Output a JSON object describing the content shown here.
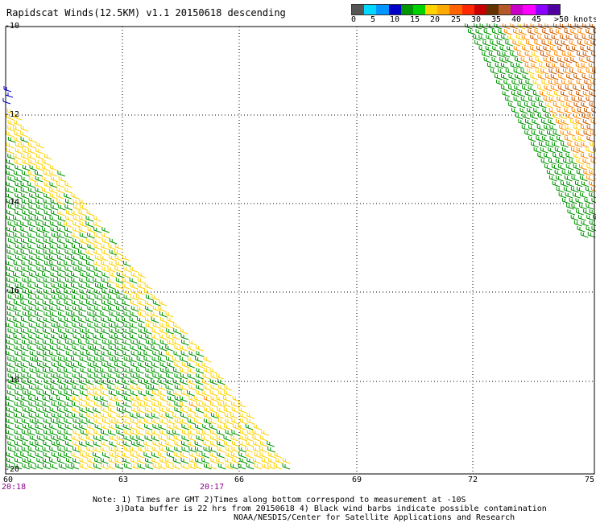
{
  "title": "Rapidscat Winds(12.5KM) v1.1 20150618 descending",
  "scale": {
    "colors": [
      "#555555",
      "#00d8ff",
      "#0096ff",
      "#0000c8",
      "#009600",
      "#00d200",
      "#ffd200",
      "#ffaa00",
      "#ff6400",
      "#ff2800",
      "#c80000",
      "#643200",
      "#b45a28",
      "#c800c8",
      "#ff00ff",
      "#8c00ff",
      "#5000a0"
    ],
    "labels": [
      "0",
      "5",
      "10",
      "15",
      "20",
      "25",
      "30",
      "35",
      "40",
      "45",
      ">50 knots"
    ]
  },
  "lat_labels": [
    "-10",
    "-12",
    "-14",
    "-16",
    "-18",
    "-20"
  ],
  "lon_labels": [
    "60",
    "63",
    "66",
    "69",
    "72",
    "75"
  ],
  "time_labels": [
    "20:18",
    "20:17"
  ],
  "notes": [
    "Note: 1) Times are GMT 2)Times along bottom correspond to measurement at -10S",
    "3)Data buffer is 22 hrs from 20150618 4) Black wind barbs indicate possible contamination",
    "NOAA/NESDIS/Center for Satellite Applications and Research"
  ],
  "barb_colors": {
    "green": "#009600",
    "yellow": "#ffd200",
    "orange": "#ff8c00",
    "brown": "#c85a00",
    "blue": "#0000c8"
  }
}
